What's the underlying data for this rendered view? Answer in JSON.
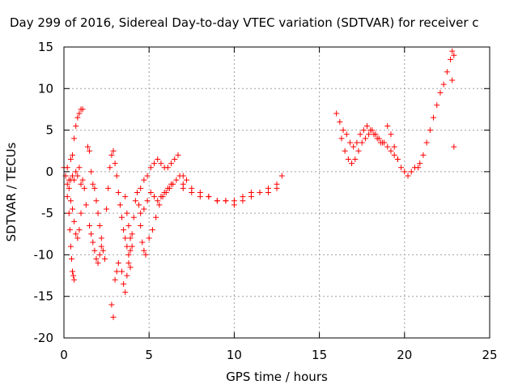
{
  "chart_data": {
    "type": "scatter",
    "title": "Day 299 of 2016, Sidereal Day-to-day VTEC variation (SDTVAR) for receiver c",
    "xlabel": "GPS time / hours",
    "ylabel": "SDTVAR / TECUs",
    "xlim": [
      0,
      25
    ],
    "ylim": [
      -20,
      15
    ],
    "xticks": [
      0,
      5,
      10,
      15,
      20,
      25
    ],
    "yticks": [
      -20,
      -15,
      -10,
      -5,
      0,
      5,
      10,
      15
    ],
    "grid": true,
    "marker": "+",
    "color": "#ff0000",
    "x": [
      0.0,
      0.1,
      0.2,
      0.3,
      0.4,
      0.5,
      0.6,
      0.7,
      0.8,
      0.9,
      1.0,
      1.1,
      0.2,
      0.3,
      0.4,
      0.5,
      0.6,
      0.7,
      0.8,
      0.9,
      1.0,
      1.1,
      1.2,
      0.2,
      0.3,
      0.35,
      0.4,
      0.45,
      0.5,
      0.55,
      0.6,
      0.4,
      0.5,
      0.6,
      0.7,
      0.8,
      0.9,
      1.0,
      1.3,
      1.4,
      1.5,
      1.6,
      1.7,
      1.8,
      1.9,
      2.0,
      2.1,
      2.2,
      2.3,
      2.4,
      1.5,
      1.6,
      1.7,
      1.8,
      1.9,
      2.0,
      2.1,
      2.2,
      2.5,
      2.6,
      2.7,
      2.8,
      2.9,
      3.0,
      3.1,
      3.2,
      3.3,
      3.4,
      3.5,
      3.6,
      3.7,
      3.8,
      3.9,
      2.8,
      2.9,
      3.0,
      3.1,
      3.2,
      3.4,
      3.5,
      3.6,
      3.7,
      3.8,
      3.9,
      4.0,
      4.1,
      4.2,
      4.3,
      4.4,
      4.5,
      4.6,
      4.7,
      4.8,
      3.6,
      3.7,
      3.8,
      3.9,
      4.0,
      4.5,
      4.7,
      4.9,
      5.1,
      5.3,
      5.5,
      5.7,
      5.9,
      6.1,
      6.3,
      6.5,
      6.7,
      4.5,
      4.7,
      4.9,
      5.1,
      5.3,
      5.5,
      5.7,
      5.9,
      6.1,
      6.3,
      5.0,
      5.2,
      5.4,
      5.6,
      5.8,
      6.0,
      6.2,
      6.4,
      6.6,
      6.8,
      7.0,
      7.2,
      7.0,
      7.5,
      8.0,
      8.5,
      9.0,
      9.5,
      10.0,
      10.5,
      11.0,
      11.5,
      12.0,
      12.5,
      12.8,
      7.0,
      7.5,
      8.0,
      8.5,
      9.0,
      9.5,
      10.0,
      10.5,
      11.0,
      11.5,
      12.0,
      12.5,
      16.0,
      16.2,
      16.4,
      16.6,
      16.8,
      17.0,
      17.2,
      17.4,
      17.6,
      17.8,
      18.0,
      18.2,
      18.4,
      18.6,
      18.8,
      19.0,
      19.2,
      19.4,
      19.6,
      16.3,
      16.5,
      16.7,
      16.9,
      17.1,
      17.3,
      17.5,
      17.7,
      17.9,
      18.1,
      18.3,
      18.5,
      18.7,
      19.0,
      19.2,
      19.4,
      19.6,
      19.8,
      20.0,
      20.2,
      20.4,
      20.6,
      20.8,
      20.9,
      21.1,
      21.3,
      21.5,
      21.7,
      21.9,
      22.1,
      22.3,
      22.5,
      22.7,
      22.8,
      22.9,
      22.8,
      22.9
    ],
    "y": [
      0.5,
      -0.5,
      0.5,
      -1.0,
      1.5,
      2.0,
      4.0,
      5.5,
      6.5,
      7.0,
      7.5,
      7.5,
      -1.5,
      -2.0,
      -1.0,
      -0.5,
      -1.0,
      0.0,
      -0.5,
      0.5,
      -1.5,
      -1.0,
      -2.0,
      -3.0,
      -5.0,
      -7.0,
      -9.0,
      -10.5,
      -12.0,
      -12.5,
      -13.0,
      -3.5,
      -4.5,
      -6.0,
      -7.5,
      -8.0,
      -7.0,
      -5.0,
      -4.0,
      3.0,
      2.5,
      0.0,
      -1.5,
      -2.0,
      -3.5,
      -5.0,
      -6.5,
      -8.0,
      -9.5,
      -10.5,
      -6.5,
      -7.5,
      -8.5,
      -9.5,
      -10.5,
      -11.0,
      -10.0,
      -9.0,
      -4.5,
      -2.0,
      0.5,
      2.0,
      2.5,
      1.0,
      -0.5,
      -2.5,
      -4.0,
      -5.5,
      -7.0,
      -8.0,
      -9.0,
      -10.0,
      -11.5,
      -16.0,
      -17.5,
      -13.0,
      -12.0,
      -11.0,
      -12.0,
      -13.5,
      -14.5,
      -12.5,
      -11.0,
      -9.5,
      -7.5,
      -5.5,
      -3.5,
      -2.5,
      -4.0,
      -6.5,
      -8.5,
      -9.5,
      -10.0,
      -3.0,
      -5.0,
      -6.5,
      -8.0,
      -9.0,
      -2.0,
      -1.0,
      -0.5,
      0.5,
      1.0,
      1.5,
      1.0,
      0.5,
      0.5,
      1.0,
      1.5,
      2.0,
      -5.0,
      -4.5,
      -3.5,
      -2.5,
      -3.0,
      -3.5,
      -3.0,
      -2.5,
      -2.0,
      -1.5,
      -8.0,
      -7.0,
      -5.5,
      -4.0,
      -3.0,
      -2.5,
      -2.0,
      -1.5,
      -1.0,
      -0.5,
      -0.5,
      -1.0,
      -2.0,
      -2.5,
      -3.0,
      -3.0,
      -3.5,
      -3.5,
      -3.5,
      -3.0,
      -2.5,
      -2.5,
      -2.5,
      -2.0,
      -0.5,
      -1.5,
      -2.0,
      -2.5,
      -3.0,
      -3.5,
      -3.5,
      -4.0,
      -3.5,
      -3.0,
      -2.5,
      -2.0,
      -1.5,
      7.0,
      6.0,
      5.0,
      4.5,
      3.5,
      3.0,
      3.5,
      4.5,
      5.0,
      5.5,
      5.0,
      4.5,
      4.0,
      3.5,
      3.5,
      3.0,
      2.5,
      2.0,
      1.5,
      4.0,
      2.5,
      1.5,
      1.0,
      1.5,
      2.5,
      3.5,
      4.0,
      4.5,
      5.0,
      4.5,
      4.0,
      3.5,
      5.5,
      4.5,
      3.0,
      1.5,
      0.5,
      0.0,
      -0.5,
      0.0,
      0.5,
      0.5,
      1.0,
      2.0,
      3.5,
      5.0,
      6.5,
      8.0,
      9.5,
      10.5,
      12.0,
      13.5,
      14.5,
      14.0,
      11.0,
      3.0
    ]
  }
}
